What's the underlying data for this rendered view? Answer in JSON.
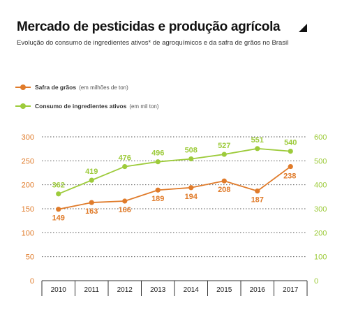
{
  "title": "Mercado de pesticidas e produção agrícola",
  "subtitle": "Evolução do consumo de ingredientes ativos* de agroquímicos e da safra de grãos no Brasil",
  "legend": [
    {
      "name": "Safra de grãos",
      "unit": "(em milhões de ton)"
    },
    {
      "name": "Consumo de ingredientes ativos",
      "unit": "(em mil ton)"
    }
  ],
  "chart_data": {
    "type": "line",
    "title": "Mercado de pesticidas e produção agrícola",
    "x": [
      "2010",
      "2011",
      "2012",
      "2013",
      "2014",
      "2015",
      "2016",
      "2017"
    ],
    "series": [
      {
        "name": "Safra de grãos",
        "unit": "(em milhões de ton)",
        "axis": "left",
        "color": "#e07b2a",
        "values": [
          149,
          163,
          166,
          189,
          194,
          208,
          187,
          238
        ],
        "labels": [
          "149",
          "163",
          "166",
          "189",
          "194",
          "208",
          "187",
          "238"
        ]
      },
      {
        "name": "Consumo de ingredientes ativos",
        "unit": "(em mil ton)",
        "axis": "right",
        "color": "#9dcb3b",
        "values": [
          362,
          419,
          476,
          496,
          508,
          527,
          551,
          540
        ],
        "labels": [
          "362",
          "419",
          "476",
          "496",
          "508",
          "527",
          "551",
          "540"
        ]
      }
    ],
    "y_left": {
      "min": 0,
      "max": 300,
      "ticks": [
        "0",
        "50",
        "100",
        "150",
        "200",
        "250",
        "300"
      ]
    },
    "y_right": {
      "min": 0,
      "max": 600,
      "ticks": [
        "0",
        "100",
        "200",
        "300",
        "400",
        "500",
        "600"
      ]
    },
    "grid": "dotted horizontal",
    "colors": {
      "left_axis": "#e07b2a",
      "right_axis": "#9dcb3b"
    }
  }
}
